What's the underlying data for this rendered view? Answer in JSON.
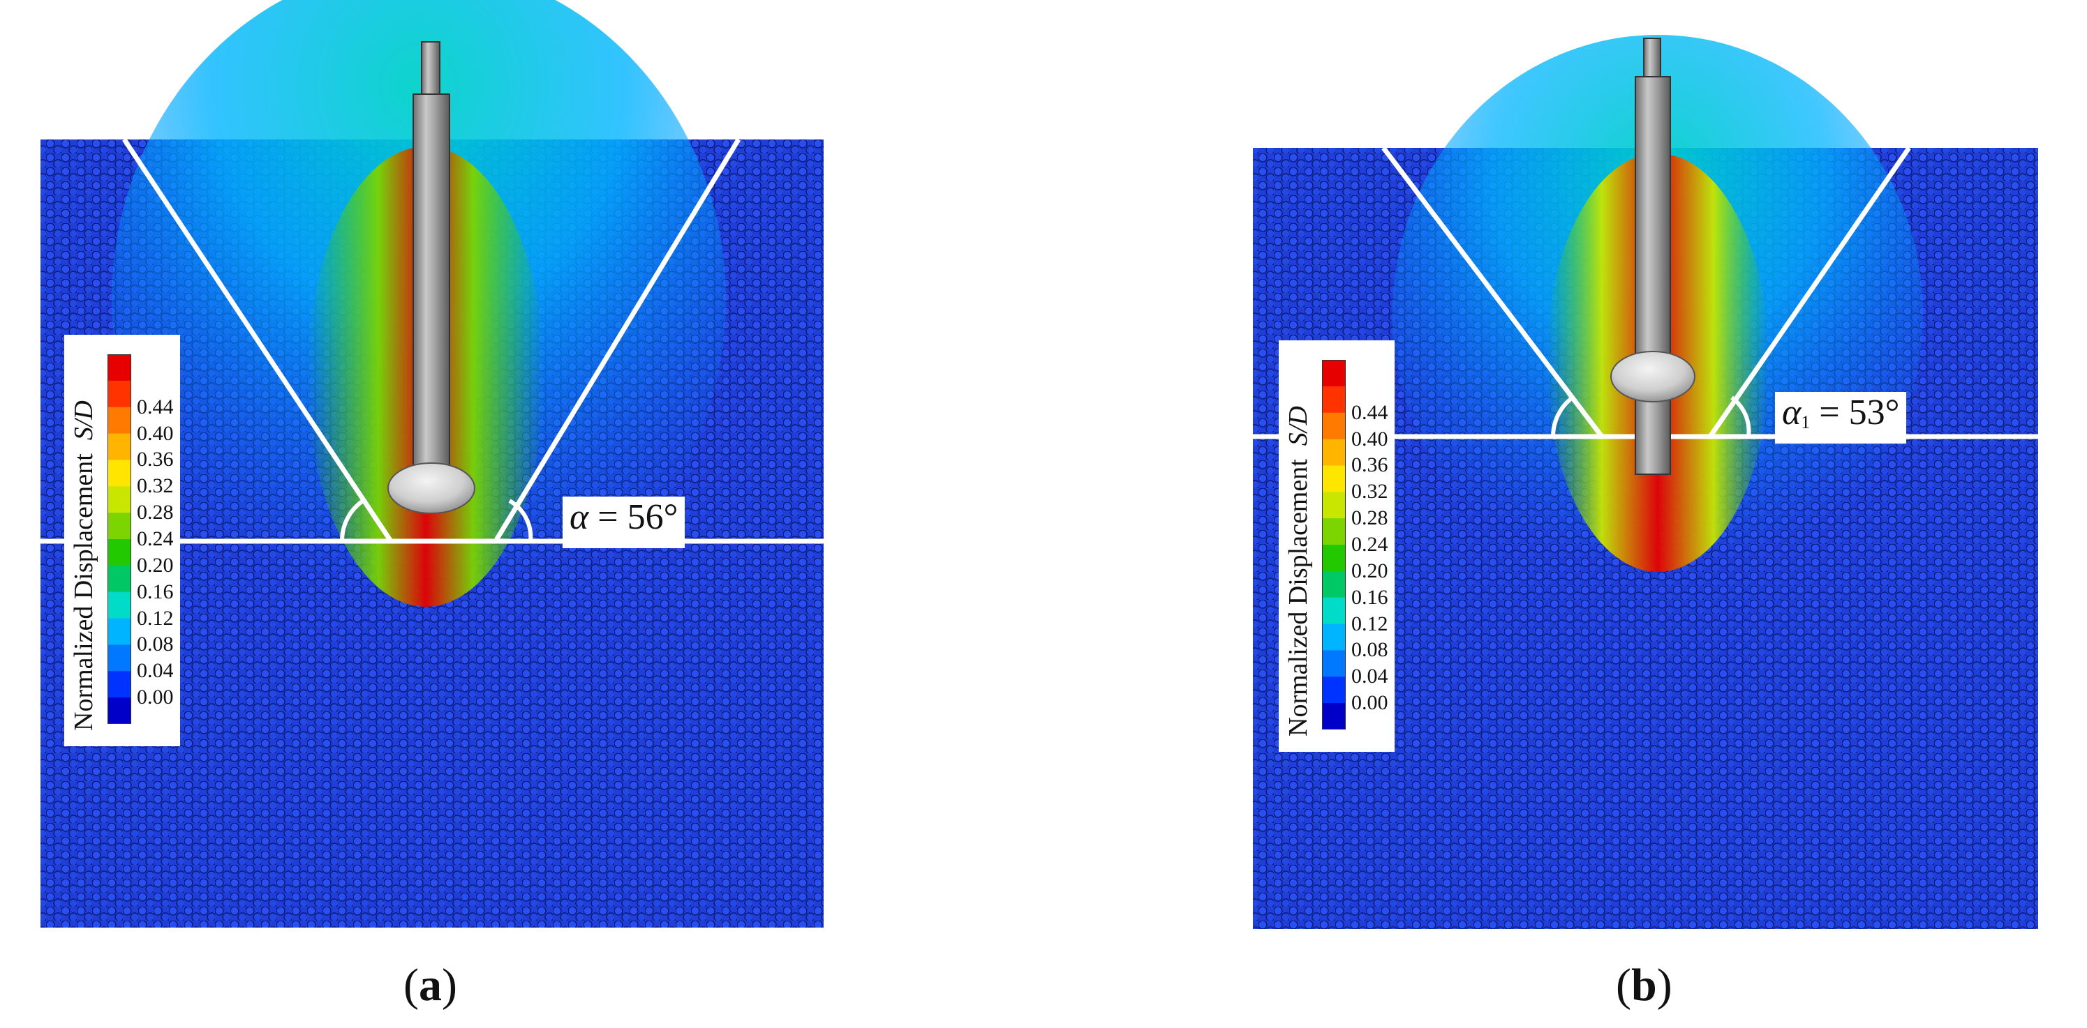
{
  "colorbar": {
    "title_main": "Normalized Displacement",
    "title_var": "S/D",
    "ticks": [
      "0.44",
      "0.40",
      "0.36",
      "0.32",
      "0.28",
      "0.24",
      "0.20",
      "0.16",
      "0.12",
      "0.08",
      "0.04",
      "0.00"
    ],
    "colors": [
      "#e60000",
      "#ff3300",
      "#ff7a00",
      "#ffb400",
      "#ffe600",
      "#c8e600",
      "#7cd400",
      "#22c800",
      "#00c864",
      "#00dcc8",
      "#00b4ff",
      "#0078ff",
      "#0033ff",
      "#0000c8"
    ]
  },
  "panels": [
    {
      "id": "a",
      "label": "a",
      "angle_symbol": "α",
      "angle_subscript": "",
      "angle_value": "= 56°",
      "alpha_deg": 56
    },
    {
      "id": "b",
      "label": "b",
      "angle_symbol": "α",
      "angle_subscript": "1",
      "angle_value": "= 53°",
      "alpha_deg": 53
    }
  ]
}
